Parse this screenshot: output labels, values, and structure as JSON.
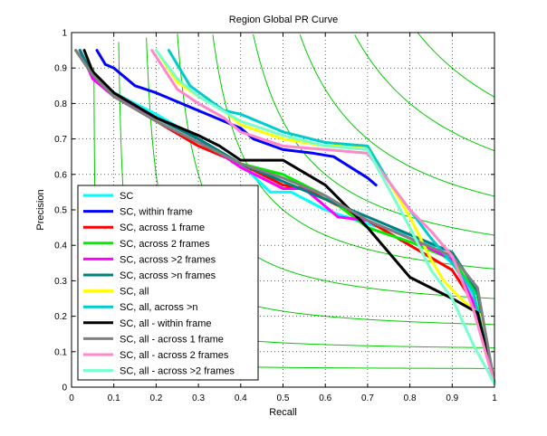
{
  "chart_data": {
    "type": "line",
    "title": "Region Global PR Curve",
    "xlabel": "Recall",
    "ylabel": "Precision",
    "xlim": [
      0,
      1
    ],
    "ylim": [
      0,
      1
    ],
    "xticks": [
      0,
      0.1,
      0.2,
      0.3,
      0.4,
      0.5,
      0.6,
      0.7,
      0.8,
      0.9,
      1
    ],
    "yticks": [
      0,
      0.1,
      0.2,
      0.3,
      0.4,
      0.5,
      0.6,
      0.7,
      0.8,
      0.9,
      1
    ],
    "xtick_labels": [
      "0",
      "0.1",
      "0.2",
      "0.3",
      "0.4",
      "0.5",
      "0.6",
      "0.7",
      "0.8",
      "0.9",
      "1"
    ],
    "ytick_labels": [
      "0",
      "0.1",
      "0.2",
      "0.3",
      "0.4",
      "0.5",
      "0.6",
      "0.7",
      "0.8",
      "0.9",
      "1"
    ],
    "grid": true,
    "grid_style": "dotted",
    "legend_position": "bottom-left",
    "iso_f_color": "#00cc00",
    "iso_f_levels": [
      0.1,
      0.2,
      0.3,
      0.4,
      0.5,
      0.6,
      0.7,
      0.8,
      0.9
    ],
    "series": [
      {
        "name": "SC",
        "color": "#00ffff",
        "x": [
          0.02,
          0.05,
          0.1,
          0.2,
          0.3,
          0.4,
          0.47,
          0.52,
          0.6,
          0.7,
          0.8,
          0.85,
          0.9,
          0.95,
          1.0
        ],
        "y": [
          0.95,
          0.88,
          0.83,
          0.77,
          0.7,
          0.63,
          0.55,
          0.55,
          0.5,
          0.46,
          0.43,
          0.4,
          0.35,
          0.26,
          0.01
        ]
      },
      {
        "name": "SC, within frame",
        "color": "#0000ff",
        "x": [
          0.06,
          0.08,
          0.1,
          0.15,
          0.2,
          0.3,
          0.4,
          0.43,
          0.5,
          0.57,
          0.62,
          0.7,
          0.72
        ],
        "y": [
          0.95,
          0.91,
          0.9,
          0.85,
          0.83,
          0.78,
          0.73,
          0.7,
          0.67,
          0.66,
          0.65,
          0.59,
          0.57
        ]
      },
      {
        "name": "SC, across 1 frame",
        "color": "#ff0000",
        "x": [
          0.01,
          0.05,
          0.1,
          0.2,
          0.3,
          0.4,
          0.5,
          0.55,
          0.6,
          0.7,
          0.8,
          0.9,
          0.96,
          1.0
        ],
        "y": [
          0.95,
          0.88,
          0.82,
          0.75,
          0.68,
          0.63,
          0.57,
          0.56,
          0.53,
          0.47,
          0.4,
          0.33,
          0.22,
          0.01
        ]
      },
      {
        "name": "SC, across 2 frames",
        "color": "#00ee00",
        "x": [
          0.01,
          0.05,
          0.1,
          0.2,
          0.3,
          0.4,
          0.5,
          0.55,
          0.6,
          0.7,
          0.8,
          0.9,
          0.96,
          1.0
        ],
        "y": [
          0.95,
          0.88,
          0.82,
          0.76,
          0.7,
          0.63,
          0.6,
          0.57,
          0.54,
          0.45,
          0.41,
          0.36,
          0.26,
          0.01
        ]
      },
      {
        "name": "SC, across >2 frames",
        "color": "#ff00ff",
        "x": [
          0.02,
          0.05,
          0.1,
          0.2,
          0.3,
          0.4,
          0.5,
          0.55,
          0.63,
          0.7,
          0.8,
          0.9,
          0.95,
          1.0
        ],
        "y": [
          0.95,
          0.87,
          0.82,
          0.76,
          0.7,
          0.62,
          0.56,
          0.56,
          0.48,
          0.47,
          0.42,
          0.36,
          0.24,
          0.01
        ]
      },
      {
        "name": "SC, across >n frames",
        "color": "#008080",
        "x": [
          0.02,
          0.05,
          0.1,
          0.2,
          0.3,
          0.4,
          0.5,
          0.6,
          0.7,
          0.8,
          0.9,
          0.96,
          1.0
        ],
        "y": [
          0.95,
          0.88,
          0.83,
          0.76,
          0.7,
          0.63,
          0.58,
          0.53,
          0.48,
          0.43,
          0.38,
          0.27,
          0.01
        ]
      },
      {
        "name": "SC, all",
        "color": "#ffff00",
        "x": [
          0.2,
          0.25,
          0.3,
          0.36,
          0.4,
          0.5,
          0.6,
          0.7,
          0.75,
          0.8,
          0.85,
          0.88,
          0.92,
          0.97,
          1.0
        ],
        "y": [
          0.95,
          0.86,
          0.82,
          0.78,
          0.74,
          0.7,
          0.68,
          0.68,
          0.58,
          0.48,
          0.36,
          0.3,
          0.25,
          0.2,
          0.01
        ]
      },
      {
        "name": "SC, all, across >n",
        "color": "#00cccc",
        "x": [
          0.23,
          0.28,
          0.36,
          0.4,
          0.5,
          0.6,
          0.7,
          0.75,
          0.8,
          0.85,
          0.9,
          0.95,
          1.0
        ],
        "y": [
          0.95,
          0.85,
          0.78,
          0.77,
          0.72,
          0.69,
          0.68,
          0.58,
          0.5,
          0.42,
          0.35,
          0.27,
          0.01
        ]
      },
      {
        "name": "SC, all - within frame",
        "color": "#000000",
        "x": [
          0.03,
          0.05,
          0.1,
          0.2,
          0.3,
          0.35,
          0.4,
          0.5,
          0.6,
          0.7,
          0.8,
          0.9,
          0.96,
          1.0
        ],
        "y": [
          0.95,
          0.89,
          0.83,
          0.76,
          0.71,
          0.68,
          0.64,
          0.64,
          0.57,
          0.45,
          0.31,
          0.25,
          0.21,
          0.01
        ]
      },
      {
        "name": "SC, all - across 1 frame",
        "color": "#808080",
        "x": [
          0.01,
          0.05,
          0.1,
          0.2,
          0.3,
          0.4,
          0.5,
          0.6,
          0.7,
          0.8,
          0.9,
          0.96,
          1.0
        ],
        "y": [
          0.95,
          0.88,
          0.82,
          0.75,
          0.69,
          0.63,
          0.59,
          0.54,
          0.47,
          0.42,
          0.37,
          0.28,
          0.01
        ]
      },
      {
        "name": "SC, all - across 2 frames",
        "color": "#ff88cc",
        "x": [
          0.19,
          0.25,
          0.3,
          0.36,
          0.4,
          0.5,
          0.6,
          0.7,
          0.75,
          0.8,
          0.85,
          0.9,
          0.95,
          1.0
        ],
        "y": [
          0.95,
          0.84,
          0.8,
          0.76,
          0.72,
          0.68,
          0.67,
          0.66,
          0.58,
          0.5,
          0.44,
          0.37,
          0.22,
          0.01
        ]
      },
      {
        "name": "SC, all - across >2 frames",
        "color": "#77ffcc",
        "x": [
          0.2,
          0.25,
          0.3,
          0.4,
          0.5,
          0.6,
          0.7,
          0.75,
          0.8,
          0.85,
          0.9,
          0.95,
          1.0
        ],
        "y": [
          0.95,
          0.87,
          0.82,
          0.75,
          0.71,
          0.68,
          0.67,
          0.56,
          0.45,
          0.33,
          0.25,
          0.12,
          0.01
        ]
      }
    ]
  }
}
